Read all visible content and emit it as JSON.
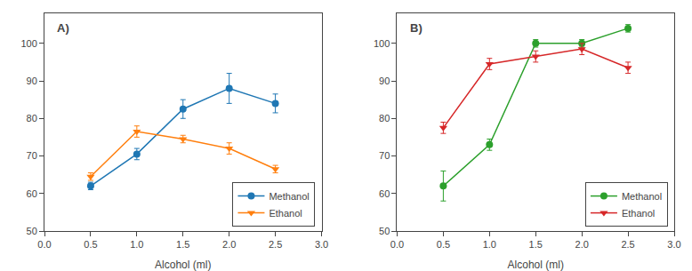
{
  "chart_data": [
    {
      "type": "line",
      "annotation": "A)",
      "xlabel": "Alcohol (ml)",
      "x": [
        0.5,
        1.0,
        1.5,
        2.0,
        2.5
      ],
      "series": [
        {
          "name": "Methanol",
          "marker": "circle",
          "values": [
            62,
            70.5,
            82.5,
            88,
            84
          ],
          "yerr": [
            1.0,
            1.5,
            2.5,
            4.0,
            2.5
          ]
        },
        {
          "name": "Ethanol",
          "marker": "triangle-down",
          "values": [
            64.5,
            76.5,
            74.5,
            72,
            66.5
          ],
          "yerr": [
            1.0,
            1.5,
            1.0,
            1.5,
            1.0
          ]
        }
      ],
      "xlim": [
        0.0,
        3.0
      ],
      "xticks": [
        {
          "value": 0.0,
          "label": "0.0"
        },
        0.5,
        {
          "value": 1.0,
          "label": "1.0"
        },
        1.5,
        {
          "value": 2.0,
          "label": "2.0"
        },
        2.5,
        {
          "value": 3.0,
          "label": "3.0"
        }
      ],
      "ylim": [
        50,
        108
      ],
      "yticks": [
        50,
        60,
        70,
        80,
        90,
        100
      ],
      "grid": false,
      "legend": "lower right"
    },
    {
      "type": "line",
      "annotation": "B)",
      "xlabel": "Alcohol (ml)",
      "x": [
        0.5,
        1.0,
        1.5,
        2.0,
        2.5
      ],
      "series": [
        {
          "name": "Methanol",
          "marker": "circle",
          "values": [
            62,
            73,
            100,
            100,
            104
          ],
          "yerr": [
            4.0,
            1.5,
            1.0,
            1.0,
            1.0
          ]
        },
        {
          "name": "Ethanol",
          "marker": "triangle-down",
          "values": [
            77.5,
            94.5,
            96.5,
            98.5,
            93.5
          ],
          "yerr": [
            1.5,
            1.5,
            1.5,
            1.5,
            1.5
          ]
        }
      ],
      "xlim": [
        0.0,
        3.0
      ],
      "xticks": [
        {
          "value": 0.0,
          "label": "0.0"
        },
        0.5,
        {
          "value": 1.0,
          "label": "1.0"
        },
        1.5,
        {
          "value": 2.0,
          "label": "2.0"
        },
        2.5,
        {
          "value": 3.0,
          "label": "3.0"
        }
      ],
      "ylim": [
        50,
        108
      ],
      "yticks": [
        50,
        60,
        70,
        80,
        90,
        100
      ],
      "grid": false,
      "legend": "lower right"
    }
  ]
}
